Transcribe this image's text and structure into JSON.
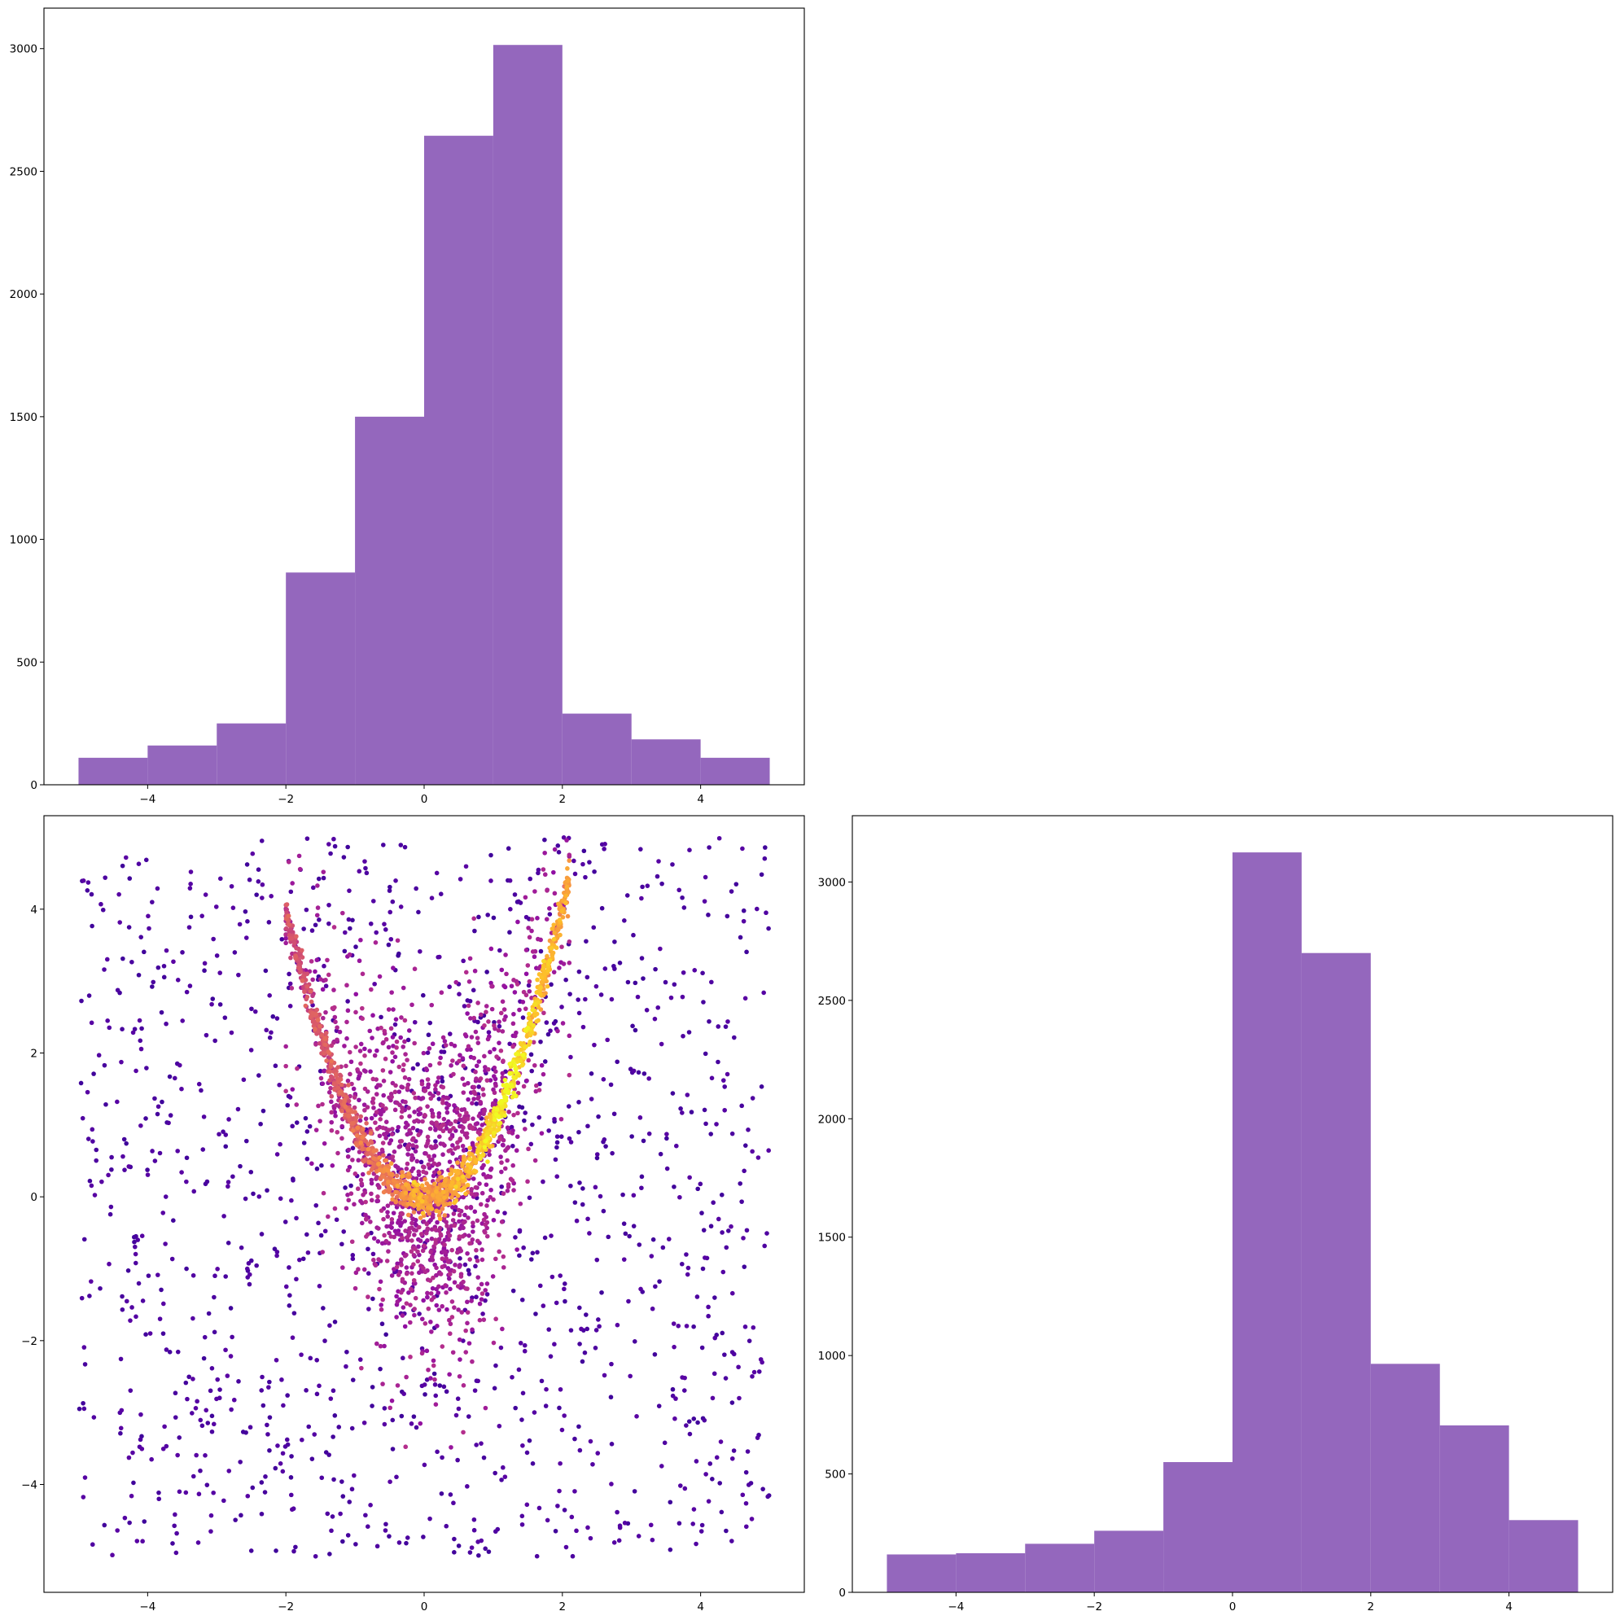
{
  "colors": {
    "bar_fill": "#9467bd",
    "scatter_colormap": "plasma",
    "background": "#ffffff"
  },
  "chart_data": [
    {
      "id": "hist-top-left",
      "type": "bar",
      "title": "",
      "xlabel": "",
      "ylabel": "",
      "bin_edges": [
        -5,
        -4,
        -3,
        -2,
        -1,
        0,
        1,
        2,
        3,
        4,
        5
      ],
      "values": [
        110,
        160,
        250,
        865,
        1500,
        2645,
        3015,
        290,
        185,
        110
      ],
      "xlim": [
        -5.5,
        5.5
      ],
      "ylim": [
        0,
        3165
      ],
      "xticks": [
        -4,
        -2,
        0,
        2,
        4
      ],
      "xtick_labels": [
        "−4",
        "−2",
        "0",
        "2",
        "4"
      ],
      "yticks": [
        0,
        500,
        1000,
        1500,
        2000,
        2500,
        3000
      ],
      "ytick_labels": [
        "0",
        "500",
        "1000",
        "1500",
        "2000",
        "2500",
        "3000"
      ],
      "grid": false,
      "legend": "none"
    },
    {
      "id": "scatter-bottom-left",
      "type": "scatter",
      "title": "",
      "xlabel": "",
      "ylabel": "",
      "description_of_points": "about 4000 points: a dense parabolic band y ≈ x² for x in [-2, 2.1] colored by point density (plasma colormap, yellow densest), a broad scatter around the band, and uniformly distributed background points over [-5,5]×[-5,5]",
      "curve": {
        "function": "y = x^2",
        "x_range": [
          -2,
          2.1
        ]
      },
      "xlim": [
        -5.5,
        5.5
      ],
      "ylim": [
        -5.5,
        5.3
      ],
      "xticks": [
        -4,
        -2,
        0,
        2,
        4
      ],
      "xtick_labels": [
        "−4",
        "−2",
        "0",
        "2",
        "4"
      ],
      "yticks": [
        -4,
        -2,
        0,
        2,
        4
      ],
      "ytick_labels": [
        "−4",
        "−2",
        "0",
        "2",
        "4"
      ],
      "grid": false,
      "legend": "none"
    },
    {
      "id": "hist-bottom-right",
      "type": "bar",
      "title": "",
      "xlabel": "",
      "ylabel": "",
      "bin_edges": [
        -5,
        -4,
        -3,
        -2,
        -1,
        0,
        1,
        2,
        3,
        4,
        5
      ],
      "values": [
        160,
        165,
        205,
        260,
        550,
        3125,
        2700,
        965,
        705,
        305
      ],
      "xlim": [
        -5.5,
        5.5
      ],
      "ylim": [
        0,
        3280
      ],
      "xticks": [
        -4,
        -2,
        0,
        2,
        4
      ],
      "xtick_labels": [
        "−4",
        "−2",
        "0",
        "2",
        "4"
      ],
      "yticks": [
        0,
        500,
        1000,
        1500,
        2000,
        2500,
        3000
      ],
      "ytick_labels": [
        "0",
        "500",
        "1000",
        "1500",
        "2000",
        "2500",
        "3000"
      ],
      "grid": false,
      "legend": "none"
    }
  ]
}
